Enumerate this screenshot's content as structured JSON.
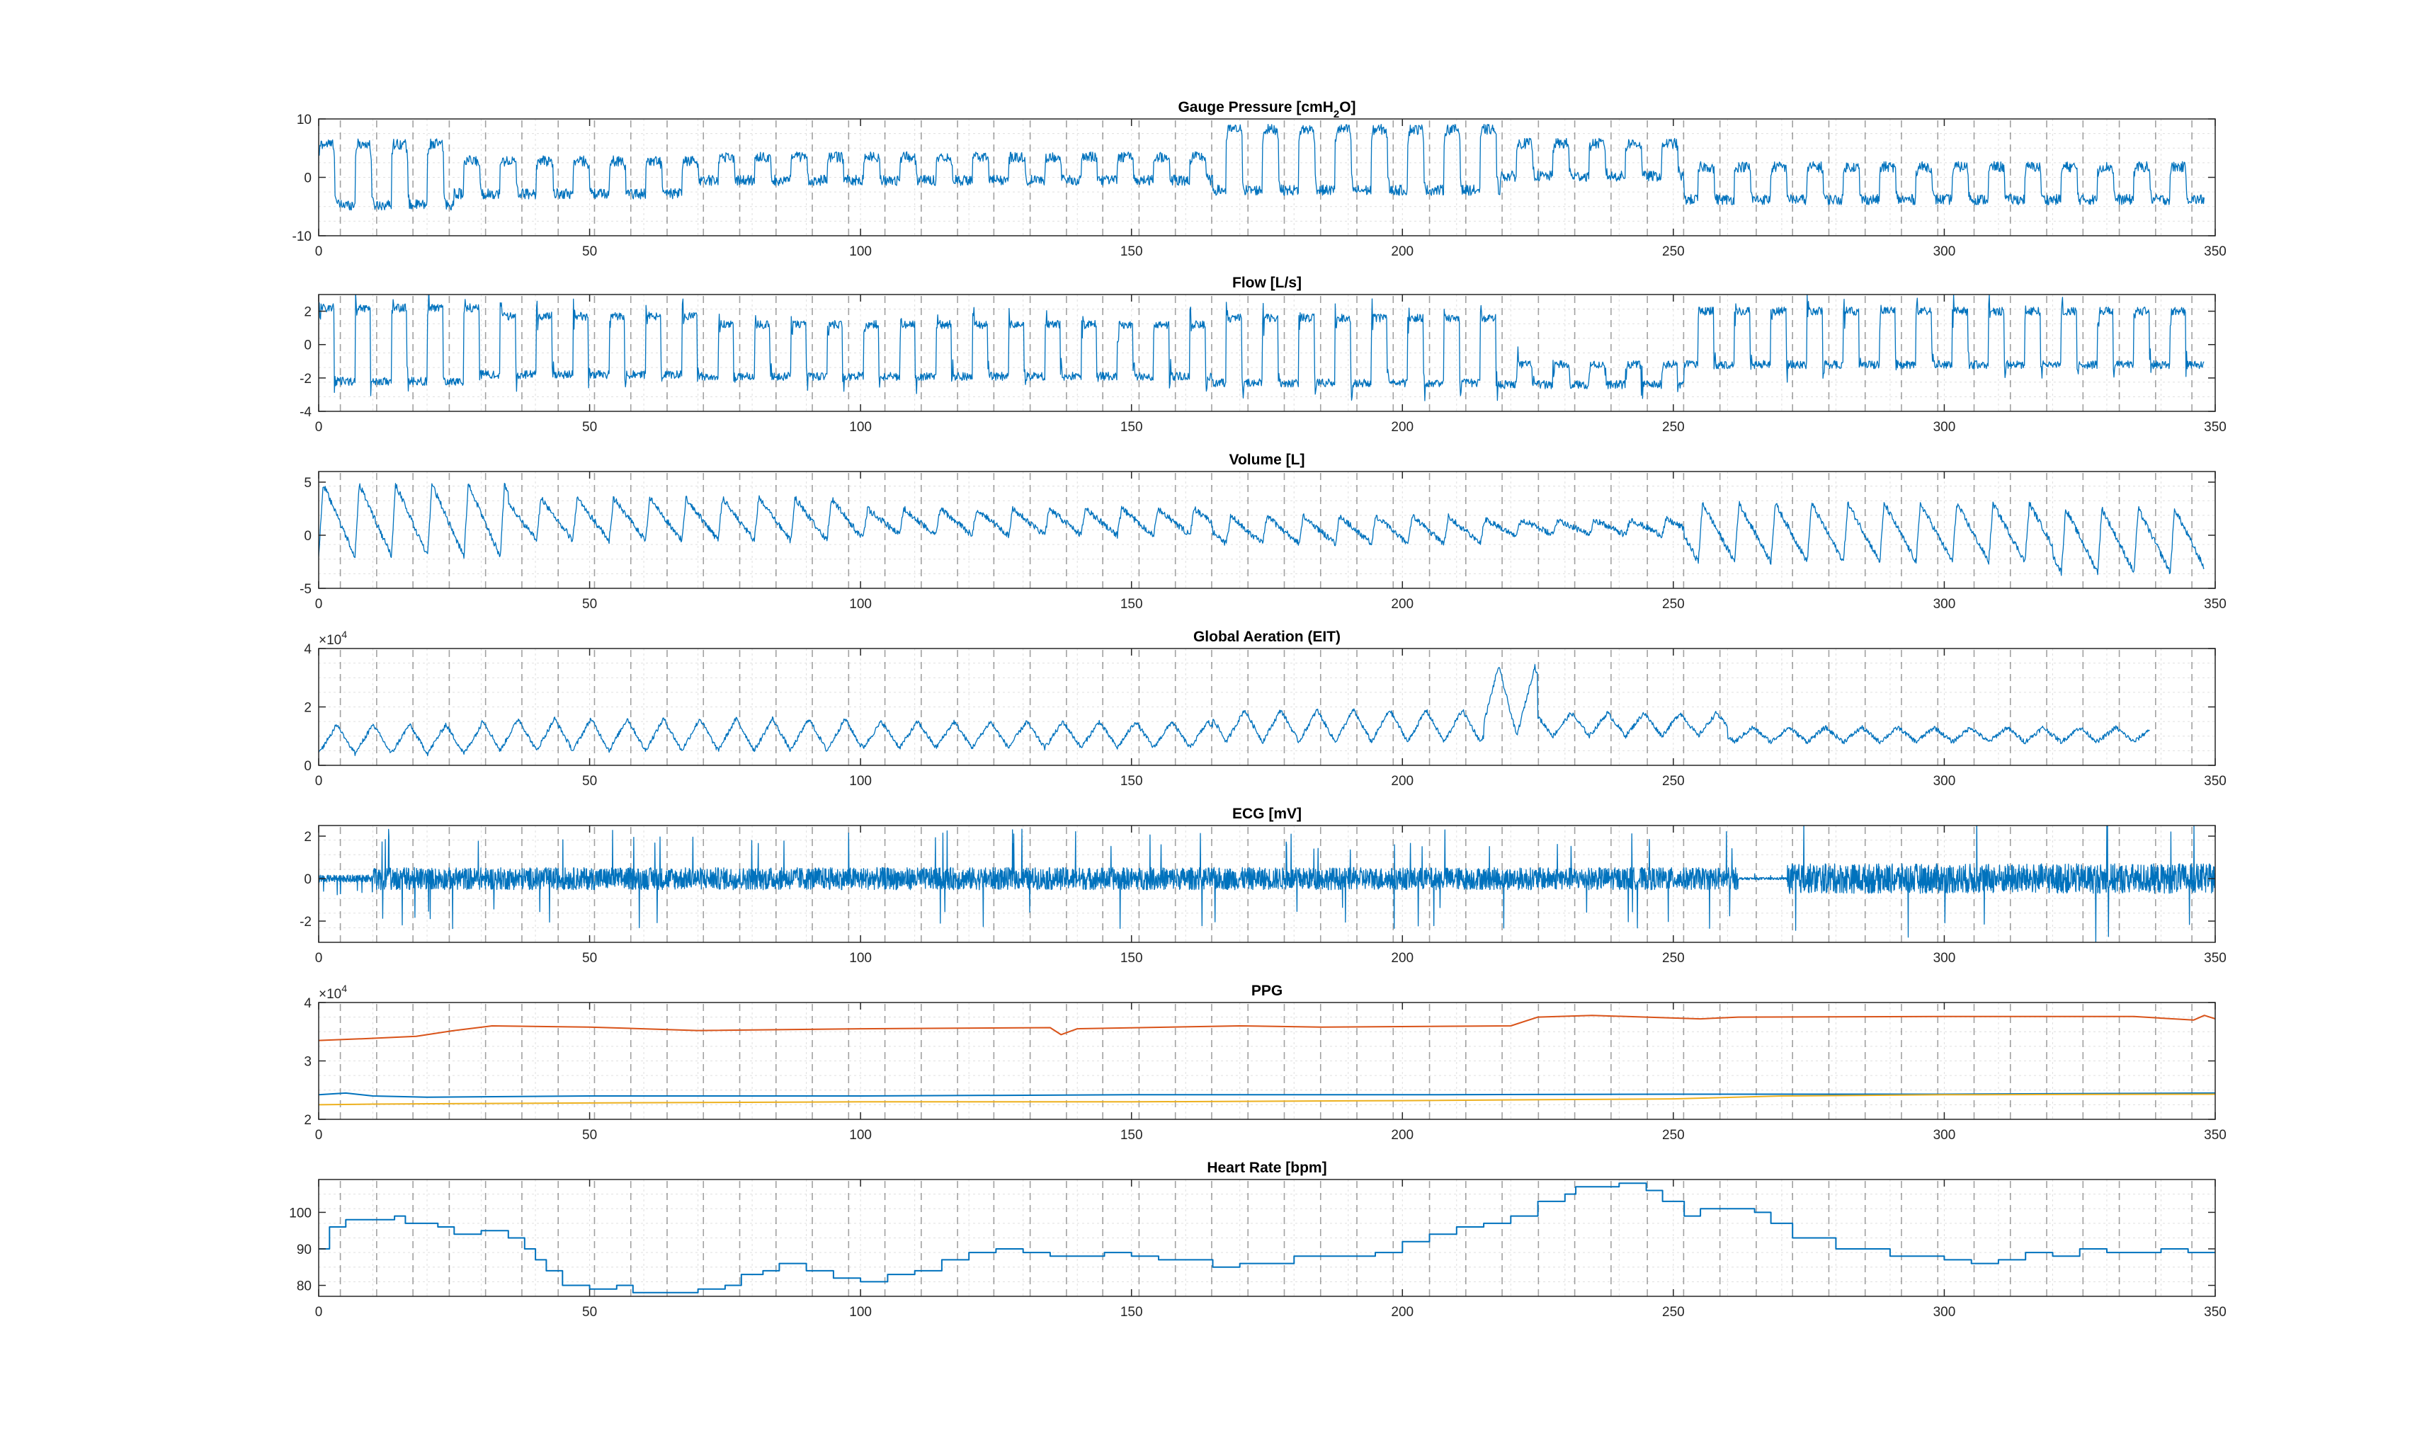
{
  "figure": {
    "background": "#ffffff"
  },
  "colors": {
    "blue": "#0072BD",
    "orange": "#D95319",
    "yellow": "#EDB120",
    "axis": "#262626",
    "grid": "#dfdfdf",
    "marker": "#555555"
  },
  "chart_data": [
    {
      "type": "line",
      "title": "Gauge Pressure [cmH",
      "title_sub": "2",
      "title_end": "O]",
      "xlim": [
        0,
        350
      ],
      "ylim": [
        -10,
        10
      ],
      "xticks": [
        0,
        50,
        100,
        150,
        200,
        250,
        300,
        350
      ],
      "yticks": [
        -10,
        0,
        10
      ],
      "grid": true,
      "pattern": {
        "kind": "pressure",
        "period": 6.7,
        "x_end": 348,
        "noise": 0.9,
        "color": "blue",
        "sharp": true
      },
      "segments": [
        {
          "x0": 0,
          "x1": 25,
          "center": 0.5,
          "amp": 6.5
        },
        {
          "x0": 25,
          "x1": 70,
          "center": 0,
          "amp": 3.5
        },
        {
          "x0": 70,
          "x1": 165,
          "center": 1.5,
          "amp": 2.5
        },
        {
          "x0": 165,
          "x1": 218,
          "center": 3,
          "amp": 6.5
        },
        {
          "x0": 218,
          "x1": 252,
          "center": 3,
          "amp": 3.5
        },
        {
          "x0": 252,
          "x1": 348,
          "center": -1,
          "amp": 3.5
        }
      ]
    },
    {
      "type": "line",
      "title": "Flow [L/s]",
      "xlim": [
        0,
        350
      ],
      "ylim": [
        -4,
        3
      ],
      "xticks": [
        0,
        50,
        100,
        150,
        200,
        250,
        300,
        350
      ],
      "yticks": [
        -4,
        -2,
        0,
        2
      ],
      "grid": true,
      "pattern": {
        "kind": "flow",
        "period": 6.7,
        "x_end": 348,
        "noise": 0.25,
        "color": "blue"
      },
      "segments": [
        {
          "x0": 0,
          "x1": 30,
          "hi": 2.2,
          "lo": -2.2
        },
        {
          "x0": 30,
          "x1": 70,
          "hi": 1.7,
          "lo": -1.8
        },
        {
          "x0": 70,
          "x1": 165,
          "hi": 1.2,
          "lo": -1.9
        },
        {
          "x0": 165,
          "x1": 218,
          "hi": 1.6,
          "lo": -2.3
        },
        {
          "x0": 218,
          "x1": 252,
          "hi": -1.2,
          "lo": -2.4
        },
        {
          "x0": 252,
          "x1": 348,
          "hi": 2.0,
          "lo": -1.2
        }
      ]
    },
    {
      "type": "line",
      "title": "Volume [L]",
      "xlim": [
        0,
        350
      ],
      "ylim": [
        -5,
        6
      ],
      "xticks": [
        0,
        50,
        100,
        150,
        200,
        250,
        300,
        350
      ],
      "yticks": [
        -5,
        0,
        5
      ],
      "grid": true,
      "pattern": {
        "kind": "saw",
        "period": 6.7,
        "x_end": 348,
        "noise": 0.3,
        "color": "blue"
      },
      "segments": [
        {
          "x0": 0,
          "x1": 35,
          "peak": 4.8,
          "base": -2
        },
        {
          "x0": 35,
          "x1": 100,
          "peak": 3.5,
          "base": -0.5
        },
        {
          "x0": 100,
          "x1": 165,
          "peak": 2.5,
          "base": 0
        },
        {
          "x0": 165,
          "x1": 215,
          "peak": 1.8,
          "base": -0.8
        },
        {
          "x0": 215,
          "x1": 252,
          "peak": 1.5,
          "base": 0
        },
        {
          "x0": 252,
          "x1": 320,
          "peak": 3.0,
          "base": -2.5
        },
        {
          "x0": 320,
          "x1": 348,
          "peak": 2.5,
          "base": -3.5
        }
      ]
    },
    {
      "type": "line",
      "title": "Global Aeration (EIT)",
      "exponent_base": "×10",
      "exponent_power": "4",
      "xlim": [
        0,
        350
      ],
      "ylim": [
        0,
        4
      ],
      "xticks": [
        0,
        50,
        100,
        150,
        200,
        250,
        300,
        350
      ],
      "yticks": [
        0,
        2,
        4
      ],
      "grid": true,
      "pattern": {
        "kind": "triangle",
        "period": 6.7,
        "x_end": 338,
        "noise": 0.08,
        "color": "blue"
      },
      "segments": [
        {
          "x0": 0,
          "x1": 30,
          "peak": 1.4,
          "base": 0.4
        },
        {
          "x0": 30,
          "x1": 100,
          "peak": 1.6,
          "base": 0.5
        },
        {
          "x0": 100,
          "x1": 165,
          "peak": 1.5,
          "base": 0.6
        },
        {
          "x0": 165,
          "x1": 215,
          "peak": 1.9,
          "base": 0.8
        },
        {
          "x0": 215,
          "x1": 225,
          "peak": 3.4,
          "base": 1.0
        },
        {
          "x0": 225,
          "x1": 260,
          "peak": 1.8,
          "base": 1.0
        },
        {
          "x0": 260,
          "x1": 338,
          "peak": 1.3,
          "base": 0.8
        }
      ]
    },
    {
      "type": "line",
      "title": "ECG [mV]",
      "xlim": [
        0,
        350
      ],
      "ylim": [
        -3,
        2.5
      ],
      "xticks": [
        0,
        50,
        100,
        150,
        200,
        250,
        300,
        350
      ],
      "yticks": [
        -2,
        0,
        2
      ],
      "grid": true,
      "pattern": {
        "kind": "ecg",
        "x_end": 350,
        "color": "blue"
      },
      "segments": [
        {
          "x0": 0,
          "x1": 10,
          "amp": 0.25
        },
        {
          "x0": 10,
          "x1": 262,
          "amp": 0.75
        },
        {
          "x0": 262,
          "x1": 271,
          "amp": 0.08
        },
        {
          "x0": 271,
          "x1": 350,
          "amp": 1.0
        }
      ]
    },
    {
      "type": "line",
      "title": "PPG",
      "exponent_base": "×10",
      "exponent_power": "4",
      "xlim": [
        0,
        350
      ],
      "ylim": [
        2,
        4
      ],
      "xticks": [
        0,
        50,
        100,
        150,
        200,
        250,
        300,
        350
      ],
      "yticks": [
        2,
        3,
        4
      ],
      "grid": true,
      "series": [
        {
          "color": "orange",
          "points": [
            [
              0,
              3.35
            ],
            [
              8,
              3.38
            ],
            [
              18,
              3.42
            ],
            [
              25,
              3.52
            ],
            [
              32,
              3.6
            ],
            [
              50,
              3.58
            ],
            [
              70,
              3.52
            ],
            [
              100,
              3.55
            ],
            [
              135,
              3.57
            ],
            [
              137,
              3.45
            ],
            [
              140,
              3.55
            ],
            [
              170,
              3.6
            ],
            [
              185,
              3.58
            ],
            [
              220,
              3.6
            ],
            [
              225,
              3.75
            ],
            [
              235,
              3.78
            ],
            [
              255,
              3.72
            ],
            [
              262,
              3.75
            ],
            [
              300,
              3.76
            ],
            [
              335,
              3.76
            ],
            [
              346,
              3.7
            ],
            [
              348,
              3.78
            ],
            [
              350,
              3.72
            ]
          ]
        },
        {
          "color": "blue",
          "points": [
            [
              0,
              2.42
            ],
            [
              5,
              2.45
            ],
            [
              10,
              2.4
            ],
            [
              20,
              2.38
            ],
            [
              50,
              2.4
            ],
            [
              100,
              2.4
            ],
            [
              150,
              2.42
            ],
            [
              200,
              2.42
            ],
            [
              250,
              2.43
            ],
            [
              300,
              2.43
            ],
            [
              350,
              2.45
            ]
          ]
        },
        {
          "color": "yellow",
          "points": [
            [
              0,
              2.25
            ],
            [
              10,
              2.26
            ],
            [
              50,
              2.28
            ],
            [
              100,
              2.3
            ],
            [
              150,
              2.3
            ],
            [
              200,
              2.32
            ],
            [
              250,
              2.35
            ],
            [
              270,
              2.4
            ],
            [
              300,
              2.42
            ],
            [
              350,
              2.43
            ]
          ]
        }
      ]
    },
    {
      "type": "line",
      "title": "Heart Rate [bpm]",
      "xlim": [
        0,
        350
      ],
      "ylim": [
        77,
        109
      ],
      "xticks": [
        0,
        50,
        100,
        150,
        200,
        250,
        300,
        350
      ],
      "yticks": [
        80,
        90,
        100
      ],
      "grid": true,
      "series": [
        {
          "color": "blue",
          "step": true,
          "points": [
            [
              0,
              90
            ],
            [
              2,
              96
            ],
            [
              5,
              98
            ],
            [
              12,
              98
            ],
            [
              14,
              99
            ],
            [
              16,
              97
            ],
            [
              22,
              96
            ],
            [
              25,
              94
            ],
            [
              30,
              95
            ],
            [
              35,
              93
            ],
            [
              38,
              90
            ],
            [
              40,
              87
            ],
            [
              42,
              84
            ],
            [
              45,
              80
            ],
            [
              50,
              79
            ],
            [
              55,
              80
            ],
            [
              58,
              78
            ],
            [
              65,
              78
            ],
            [
              70,
              79
            ],
            [
              75,
              80
            ],
            [
              78,
              83
            ],
            [
              82,
              84
            ],
            [
              85,
              86
            ],
            [
              90,
              84
            ],
            [
              95,
              82
            ],
            [
              100,
              81
            ],
            [
              105,
              83
            ],
            [
              110,
              84
            ],
            [
              115,
              87
            ],
            [
              120,
              89
            ],
            [
              125,
              90
            ],
            [
              130,
              89
            ],
            [
              135,
              88
            ],
            [
              140,
              88
            ],
            [
              145,
              89
            ],
            [
              150,
              88
            ],
            [
              155,
              87
            ],
            [
              160,
              87
            ],
            [
              165,
              85
            ],
            [
              170,
              86
            ],
            [
              180,
              88
            ],
            [
              190,
              88
            ],
            [
              195,
              89
            ],
            [
              200,
              92
            ],
            [
              205,
              94
            ],
            [
              210,
              96
            ],
            [
              215,
              97
            ],
            [
              220,
              99
            ],
            [
              225,
              103
            ],
            [
              230,
              105
            ],
            [
              232,
              107
            ],
            [
              240,
              108
            ],
            [
              245,
              106
            ],
            [
              248,
              103
            ],
            [
              252,
              99
            ],
            [
              255,
              101
            ],
            [
              260,
              101
            ],
            [
              265,
              100
            ],
            [
              268,
              97
            ],
            [
              272,
              93
            ],
            [
              280,
              90
            ],
            [
              290,
              88
            ],
            [
              300,
              87
            ],
            [
              305,
              86
            ],
            [
              310,
              87
            ],
            [
              315,
              89
            ],
            [
              320,
              88
            ],
            [
              325,
              90
            ],
            [
              330,
              89
            ],
            [
              335,
              89
            ],
            [
              340,
              90
            ],
            [
              345,
              89
            ],
            [
              350,
              89
            ]
          ]
        }
      ]
    }
  ]
}
